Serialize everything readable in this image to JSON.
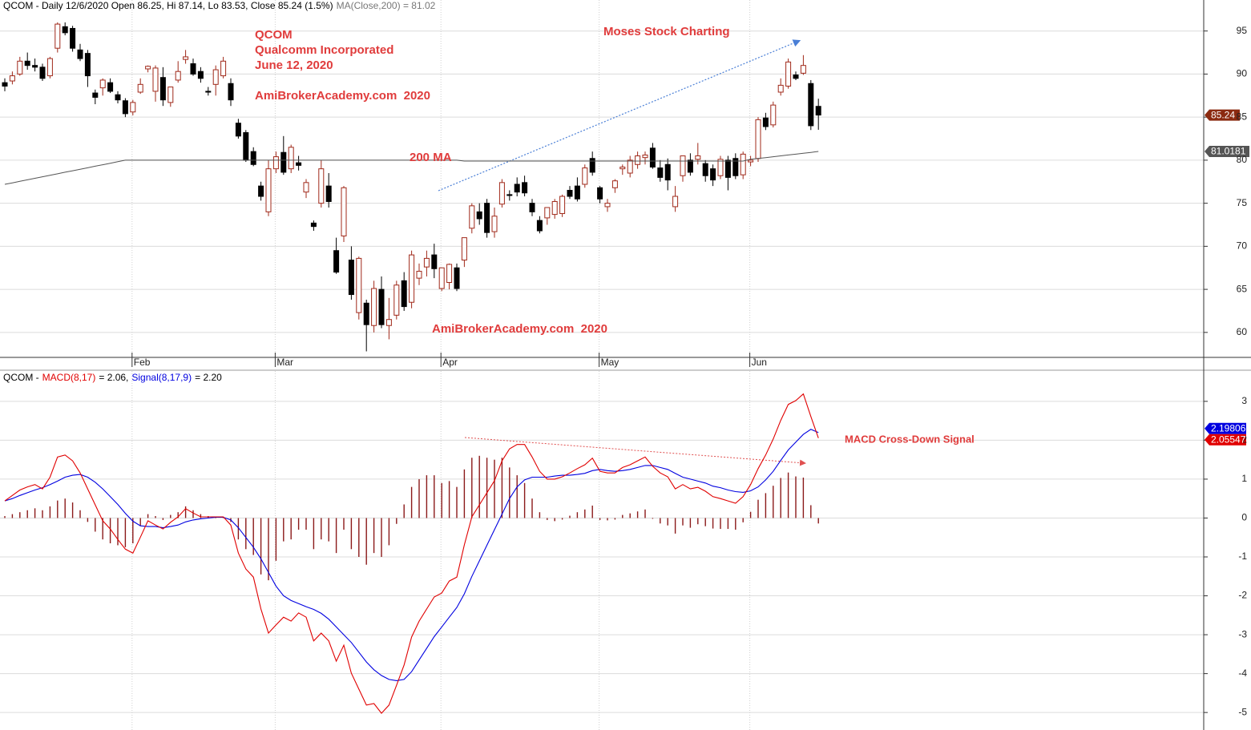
{
  "chart_data": [
    {
      "type": "candlestick",
      "header": [
        {
          "text": "QCOM - Daily 12/6/2020 Open 86.25, Hi 87.14, Lo 83.53, Close 85.24 (1.5%)",
          "color": "#000000"
        },
        {
          "text": "MA(Close,200) = 81.02",
          "color": "#777777"
        }
      ],
      "annotations": [
        {
          "text": "QCOM",
          "color": "#e03c3c"
        },
        {
          "text": "Qualcomm Incorporated",
          "color": "#e03c3c"
        },
        {
          "text": "June 12, 2020",
          "color": "#e03c3c"
        },
        {
          "text": "AmiBrokerAcademy.com  2020",
          "color": "#e03c3c"
        },
        {
          "text": "Moses Stock Charting",
          "color": "#e03c3c"
        },
        {
          "text": "200 MA",
          "color": "#e03c3c"
        },
        {
          "text": "AmiBrokerAcademy.com  2020",
          "color": "#e03c3c"
        }
      ],
      "categories": [
        null,
        null,
        null,
        null,
        null,
        null,
        null,
        null,
        null,
        null,
        null,
        null,
        null,
        null,
        null,
        null,
        null,
        "Feb",
        null,
        null,
        null,
        null,
        null,
        null,
        null,
        null,
        null,
        null,
        null,
        null,
        null,
        null,
        null,
        null,
        null,
        null,
        "Mar",
        null,
        null,
        null,
        null,
        null,
        null,
        null,
        null,
        null,
        null,
        null,
        null,
        null,
        null,
        null,
        null,
        null,
        null,
        null,
        null,
        null,
        "Apr",
        null,
        null,
        null,
        null,
        null,
        null,
        null,
        null,
        null,
        null,
        null,
        null,
        null,
        null,
        null,
        null,
        null,
        null,
        null,
        null,
        "May",
        null,
        null,
        null,
        null,
        null,
        null,
        null,
        null,
        null,
        null,
        null,
        null,
        null,
        null,
        null,
        null,
        null,
        null,
        null,
        "Jun",
        null,
        null,
        null,
        null,
        null,
        null,
        null,
        null,
        null
      ],
      "open": [
        89,
        89.2,
        90,
        91.5,
        91,
        90.8,
        89.8,
        93,
        95.5,
        95.3,
        92.8,
        92.4,
        87.8,
        88.4,
        89,
        87.6,
        86.9,
        85.6,
        87.9,
        90.6,
        88,
        89.6,
        86.7,
        89.3,
        91.7,
        91.2,
        90.3,
        88,
        88.8,
        89.8,
        88.9,
        84.3,
        83.2,
        81,
        77,
        74,
        79,
        80.9,
        79,
        79.7,
        76.3,
        72.7,
        75,
        77,
        69.5,
        71.2,
        68.4,
        62.3,
        63.4,
        60.8,
        65,
        60.8,
        62,
        66,
        63.5,
        66.3,
        67.6,
        69,
        65.1,
        65.8,
        67.5,
        68.4,
        72.1,
        74,
        75,
        71.7,
        74.9,
        76,
        77.2,
        77.4,
        75,
        73,
        73.3,
        73.7,
        73.8,
        76.5,
        77,
        77.2,
        80.2,
        76.8,
        74.6,
        76.8,
        79,
        78.5,
        79.5,
        80.3,
        81.4,
        79.1,
        79.5,
        74.6,
        78.2,
        80,
        80.1,
        79.6,
        79,
        78.2,
        80,
        80.2,
        78.3,
        79.8,
        80.2,
        84.9,
        84.1,
        87.9,
        88.6,
        89.9,
        90.1,
        88.9,
        86.25
      ],
      "high": [
        89.5,
        90.3,
        92,
        92.5,
        91.8,
        91.2,
        92,
        96,
        96,
        95.6,
        93.5,
        92.8,
        88.2,
        89.5,
        89.5,
        88,
        87.2,
        87,
        89.5,
        91,
        91,
        90.8,
        88.5,
        91.5,
        92.8,
        91.8,
        90.8,
        88.5,
        91,
        92,
        89.5,
        84.8,
        83.5,
        81.5,
        77.5,
        80,
        81,
        82.8,
        81.8,
        80.5,
        77.8,
        73,
        80,
        78.5,
        71,
        77,
        70,
        68.8,
        63.8,
        66,
        66.5,
        64,
        66,
        67,
        69.5,
        68,
        69.5,
        70.3,
        67.5,
        68,
        68,
        71,
        75,
        75,
        75.5,
        74.5,
        77.8,
        76.5,
        78,
        78.2,
        75.5,
        73.5,
        74.5,
        75.5,
        76,
        77,
        78,
        79.5,
        81,
        77,
        75.5,
        77.8,
        79.5,
        80.5,
        81,
        81,
        82,
        80,
        80.2,
        77,
        80.5,
        80.8,
        82,
        80,
        79.5,
        80.5,
        80.5,
        80.8,
        81,
        80.5,
        85,
        85.5,
        86.8,
        89.5,
        91.8,
        90.3,
        92.2,
        89.3,
        87.14
      ],
      "low": [
        88,
        88.8,
        89.8,
        90.5,
        90.3,
        89.2,
        89.5,
        92.5,
        94.5,
        92.6,
        91.5,
        88.5,
        86.5,
        87.5,
        87.8,
        86.6,
        85,
        85.2,
        87.7,
        90.2,
        86.8,
        86.3,
        86.2,
        89,
        91.2,
        89.8,
        89,
        87.5,
        87.5,
        89.5,
        86.3,
        82.5,
        79.8,
        79.3,
        75.3,
        73.5,
        78.5,
        78.3,
        78.5,
        78.8,
        75.6,
        71.8,
        74.5,
        74.5,
        66.8,
        70.5,
        63.8,
        61.5,
        57.8,
        60,
        60.5,
        59.2,
        61.5,
        62.5,
        62.8,
        65.5,
        66.5,
        66.3,
        64.8,
        65,
        64.8,
        67.6,
        71.5,
        72.5,
        71,
        71,
        74.5,
        75.3,
        75.8,
        75.8,
        73.5,
        71.5,
        72.5,
        73.2,
        73.4,
        75.5,
        75.2,
        76.8,
        78.2,
        75,
        74,
        76.2,
        78.3,
        78,
        79,
        79.5,
        79,
        77.5,
        76.5,
        74,
        77.5,
        78.2,
        79.5,
        77.5,
        77,
        77.8,
        76.5,
        77.8,
        77.8,
        79.3,
        79.8,
        83.5,
        83.8,
        87.5,
        88.3,
        89.3,
        89.9,
        83.5,
        83.53
      ],
      "close": [
        88.6,
        89.8,
        91.5,
        91,
        90.8,
        89.5,
        91.8,
        95.8,
        94.8,
        93,
        91.8,
        89.8,
        87.3,
        89.3,
        88,
        87,
        85.4,
        86.7,
        88.8,
        90.9,
        90.7,
        87,
        88.5,
        90.3,
        92,
        90,
        89.5,
        87.9,
        90.5,
        91.5,
        87,
        82.8,
        80,
        79.5,
        75.8,
        79,
        80.4,
        78.6,
        81.5,
        79.4,
        77.4,
        72.3,
        79,
        75.2,
        67,
        76.8,
        64.4,
        68.6,
        60.9,
        65.1,
        60.9,
        61.5,
        65.5,
        63,
        69,
        67.1,
        68.6,
        67.4,
        67.5,
        67.9,
        65.1,
        71,
        74.7,
        73.2,
        71.6,
        73.5,
        77.4,
        75.9,
        76.3,
        76.2,
        74,
        71.8,
        74.5,
        75.2,
        75.8,
        75.8,
        75.5,
        79.1,
        78.6,
        75.5,
        75,
        77.6,
        79.2,
        80,
        80.5,
        80.6,
        79.2,
        78,
        77.7,
        75.8,
        80.5,
        78.6,
        80.5,
        78.2,
        77.7,
        80.1,
        78,
        78.2,
        80.7,
        80,
        84.7,
        83.9,
        86.4,
        88.7,
        91.4,
        89.5,
        91,
        84,
        85.24
      ],
      "up_color": "#a0291a",
      "down_color": "#000000",
      "last_tag_color": "#8b2a10",
      "series": [
        {
          "color": "#555555",
          "tag_color": "#555555",
          "values": [
            77.2,
            77.37,
            77.55,
            77.72,
            77.9,
            78.07,
            78.25,
            78.42,
            78.6,
            78.77,
            78.95,
            79.12,
            79.3,
            79.47,
            79.65,
            79.82,
            80,
            80,
            80,
            80,
            80,
            80,
            80,
            80,
            80,
            80,
            80,
            80,
            80,
            80,
            80,
            80,
            80,
            80,
            80,
            80,
            80,
            80,
            80,
            80,
            80,
            80,
            80,
            80,
            80,
            80,
            80,
            80,
            80,
            80,
            80,
            80,
            80,
            80,
            80,
            80,
            80,
            80,
            80,
            80,
            80,
            79.9,
            79.9,
            79.9,
            79.9,
            79.9,
            79.9,
            79.9,
            79.9,
            79.9,
            79.9,
            79.9,
            79.9,
            79.9,
            79.9,
            79.9,
            79.9,
            79.9,
            79.9,
            79.9,
            79.9,
            79.9,
            79.9,
            79.9,
            79.9,
            79.9,
            79.9,
            79.9,
            79.9,
            79.9,
            79.9,
            79.9,
            79.9,
            79.9,
            79.9,
            79.9,
            79.9,
            79.9,
            79.9,
            80.1,
            80.2,
            80.3,
            80.4,
            80.5,
            80.6,
            80.7,
            80.8,
            80.9,
            81.0181
          ]
        }
      ],
      "ylim": [
        57.1,
        98.6
      ],
      "yticks": [
        60,
        65,
        70,
        75,
        80,
        85,
        90,
        95
      ],
      "grid": true
    },
    {
      "type": "macd",
      "header": [
        {
          "text": "QCOM -",
          "color": "#000000"
        },
        {
          "text": "MACD(8,17)",
          "color": "#e00000"
        },
        {
          "text": "= 2.06,",
          "color": "#000000"
        },
        {
          "text": "Signal(8,17,9)",
          "color": "#0000e0"
        },
        {
          "text": "= 2.20",
          "color": "#000000"
        }
      ],
      "annotations": [
        {
          "text": "MACD Cross-Down Signal",
          "color": "#e03c3c"
        }
      ],
      "histogram": {
        "color": "#8b1a1a",
        "values": [
          0.05,
          0.1,
          0.15,
          0.2,
          0.25,
          0.2,
          0.3,
          0.45,
          0.5,
          0.4,
          0.2,
          -0.1,
          -0.35,
          -0.55,
          -0.65,
          -0.7,
          -0.75,
          -0.65,
          -0.2,
          0.1,
          0.05,
          -0.05,
          0.08,
          0.15,
          0.3,
          0.2,
          0.1,
          0.05,
          0.03,
          0.02,
          -0.1,
          -0.55,
          -0.8,
          -0.95,
          -1.45,
          -1.6,
          -1.1,
          -0.6,
          -0.55,
          -0.3,
          -0.3,
          -0.8,
          -0.55,
          -0.6,
          -0.9,
          -0.3,
          -0.8,
          -1,
          -1.2,
          -0.9,
          -1,
          -0.7,
          -0.15,
          0.35,
          0.8,
          1,
          1.1,
          1.1,
          0.9,
          0.95,
          0.8,
          1.25,
          1.55,
          1.6,
          1.55,
          1.5,
          1.55,
          1.3,
          1.1,
          0.9,
          0.5,
          0.15,
          -0.05,
          -0.08,
          -0.04,
          0.06,
          0.15,
          0.22,
          0.32,
          -0.05,
          -0.06,
          -0.04,
          0.08,
          0.12,
          0.17,
          0.22,
          -0.02,
          -0.14,
          -0.19,
          -0.4,
          -0.19,
          -0.25,
          -0.16,
          -0.21,
          -0.27,
          -0.28,
          -0.28,
          -0.3,
          -0.11,
          0.16,
          0.47,
          0.64,
          0.83,
          1.03,
          1.17,
          1.07,
          1.04,
          0.33,
          -0.14
        ]
      },
      "series": [
        {
          "color": "#e00000",
          "values": [
            0.44,
            0.58,
            0.72,
            0.8,
            0.86,
            0.75,
            1.05,
            1.57,
            1.62,
            1.47,
            1.16,
            0.75,
            0.34,
            -0.07,
            -0.28,
            -0.55,
            -0.8,
            -0.9,
            -0.49,
            -0.07,
            -0.18,
            -0.28,
            -0.11,
            0.03,
            0.24,
            0.13,
            0.03,
            0.03,
            0.03,
            0.03,
            -0.18,
            -0.9,
            -1.31,
            -1.52,
            -2.34,
            -2.96,
            -2.75,
            -2.55,
            -2.65,
            -2.44,
            -2.55,
            -3.16,
            -2.96,
            -3.16,
            -3.68,
            -3.27,
            -3.99,
            -4.4,
            -4.81,
            -4.77,
            -5.02,
            -4.81,
            -4.3,
            -3.78,
            -3.06,
            -2.65,
            -2.34,
            -2.03,
            -1.93,
            -1.62,
            -1.52,
            -0.69,
            0.03,
            0.34,
            0.65,
            0.96,
            1.47,
            1.78,
            1.89,
            1.89,
            1.57,
            1.2,
            1,
            1,
            1.06,
            1.16,
            1.27,
            1.37,
            1.54,
            1.2,
            1.16,
            1.16,
            1.3,
            1.37,
            1.47,
            1.57,
            1.33,
            1.16,
            1.06,
            0.75,
            0.86,
            0.75,
            0.79,
            0.69,
            0.55,
            0.5,
            0.44,
            0.38,
            0.55,
            0.86,
            1.27,
            1.62,
            2.03,
            2.51,
            2.92,
            3.02,
            3.19,
            2.61,
            2.05547
          ]
        },
        {
          "color": "#0000e0",
          "values": [
            0.44,
            0.5,
            0.58,
            0.65,
            0.72,
            0.78,
            0.86,
            0.95,
            1.05,
            1.1,
            1.12,
            1.05,
            0.92,
            0.75,
            0.55,
            0.35,
            0.12,
            -0.08,
            -0.2,
            -0.22,
            -0.22,
            -0.25,
            -0.22,
            -0.18,
            -0.1,
            -0.05,
            -0.02,
            0,
            0.02,
            0.02,
            -0.05,
            -0.25,
            -0.5,
            -0.75,
            -1.05,
            -1.4,
            -1.75,
            -2,
            -2.12,
            -2.2,
            -2.28,
            -2.35,
            -2.45,
            -2.6,
            -2.8,
            -3,
            -3.2,
            -3.45,
            -3.7,
            -3.9,
            -4.05,
            -4.15,
            -4.18,
            -4.15,
            -3.95,
            -3.65,
            -3.35,
            -3.05,
            -2.8,
            -2.55,
            -2.3,
            -1.95,
            -1.5,
            -1.1,
            -0.7,
            -0.3,
            0.1,
            0.5,
            0.8,
            0.98,
            1.05,
            1.05,
            1.05,
            1.08,
            1.1,
            1.1,
            1.12,
            1.15,
            1.22,
            1.25,
            1.22,
            1.2,
            1.22,
            1.25,
            1.3,
            1.35,
            1.35,
            1.3,
            1.25,
            1.15,
            1.05,
            1,
            0.95,
            0.9,
            0.82,
            0.78,
            0.72,
            0.68,
            0.66,
            0.7,
            0.8,
            0.98,
            1.2,
            1.48,
            1.75,
            1.95,
            2.15,
            2.28,
            2.19806
          ]
        }
      ],
      "ylim": [
        -5.45,
        3.78
      ],
      "yticks": [
        -5,
        -4,
        -3,
        -2,
        -1,
        0,
        1,
        2,
        3
      ],
      "grid": true
    }
  ]
}
